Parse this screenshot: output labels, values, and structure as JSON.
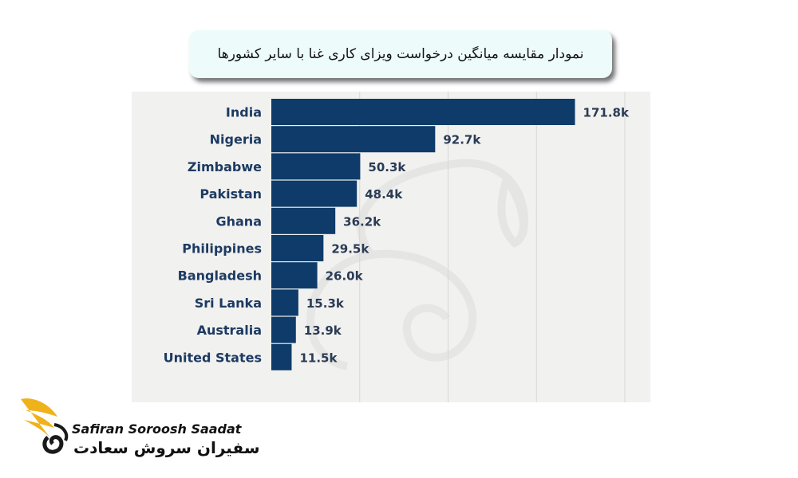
{
  "title": "نمودار مقایسه میانگین درخواست ویزای کاری غنا با سایر کشورها",
  "logo": {
    "name_en": "Safiran Soroosh Saadat",
    "name_fa": "سفیران سروش سعادت"
  },
  "colors": {
    "bar": "#0e3b69",
    "label": "#1d3a62",
    "value": "#2a3b55",
    "chart_bg": "#f1f1ef",
    "grid": "#d7d7d4",
    "title_bg": "#eefbfb",
    "logo_gold": "#f0b21b",
    "logo_dark": "#1a1a1a"
  },
  "chart_data": {
    "type": "bar",
    "orientation": "horizontal",
    "categories": [
      "India",
      "Nigeria",
      "Zimbabwe",
      "Pakistan",
      "Ghana",
      "Philippines",
      "Bangladesh",
      "Sri Lanka",
      "Australia",
      "United States"
    ],
    "values": [
      171.8,
      92.7,
      50.3,
      48.4,
      36.2,
      29.5,
      26.0,
      15.3,
      13.9,
      11.5
    ],
    "value_labels": [
      "171.8k",
      "92.7k",
      "50.3k",
      "48.4k",
      "36.2k",
      "29.5k",
      "26.0k",
      "15.3k",
      "13.9k",
      "11.5k"
    ],
    "unit": "k",
    "xlim": [
      0,
      200
    ],
    "gridlines": [
      50,
      100,
      150,
      200
    ],
    "grid": true,
    "title": "",
    "xlabel": "",
    "ylabel": ""
  }
}
